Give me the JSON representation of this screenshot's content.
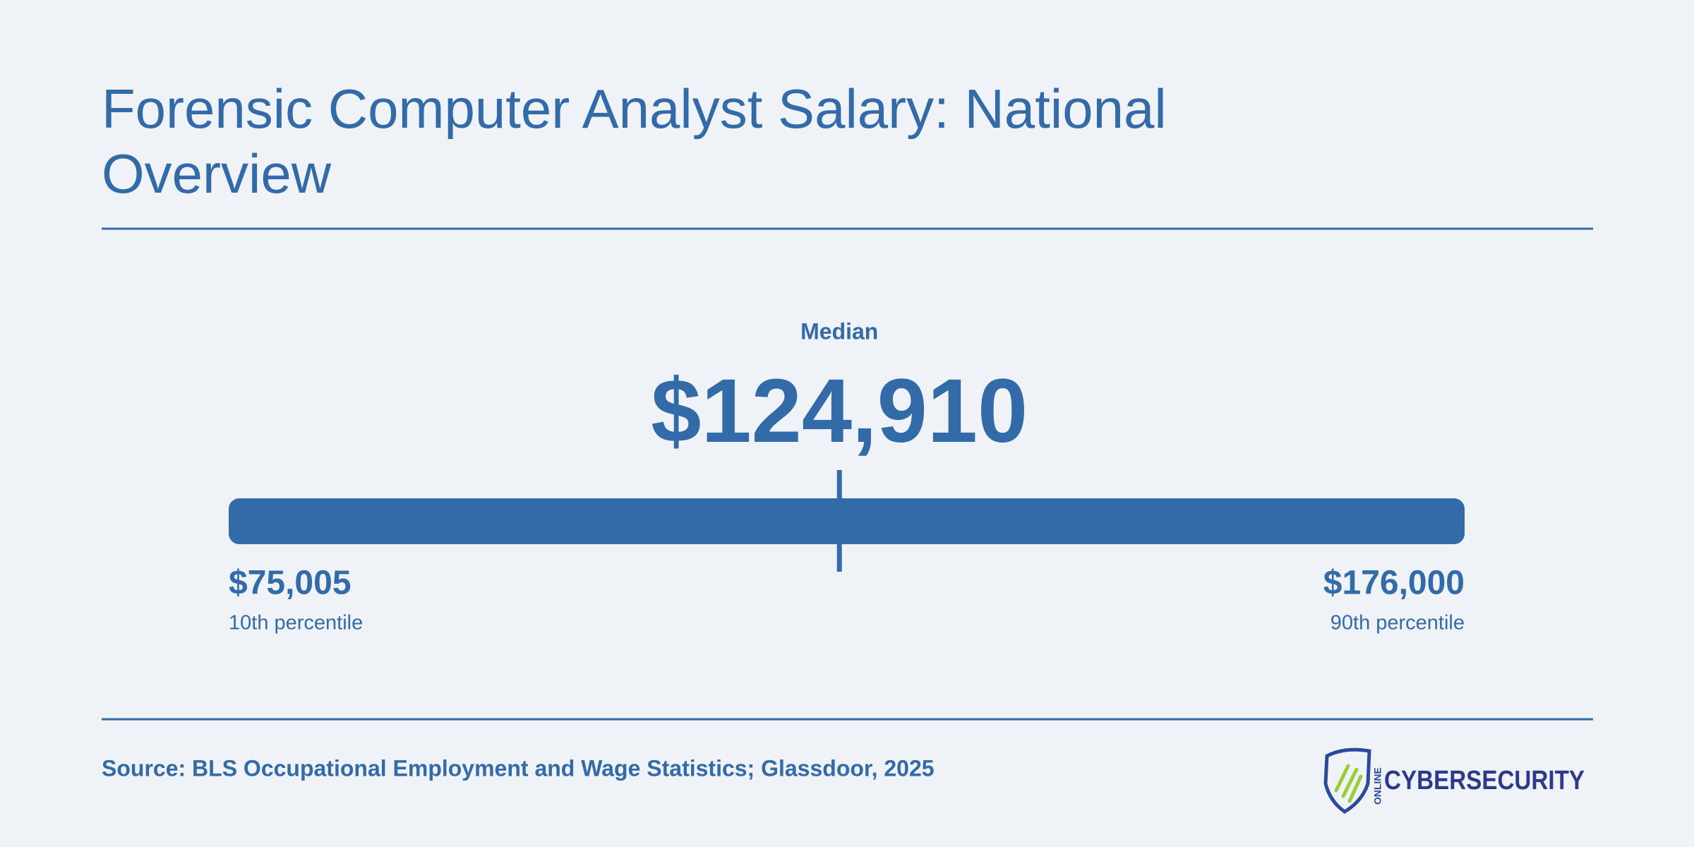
{
  "chart_data": {
    "type": "range",
    "title": "Forensic Computer Analyst Salary: National Overview",
    "categories": [
      "10th percentile",
      "Median",
      "90th percentile"
    ],
    "values": [
      75005,
      124910,
      176000
    ],
    "value_labels": [
      "$75,005",
      "$124,910",
      "$176,000"
    ],
    "color": "#336aa8",
    "source": "Source: BLS Occupational Employment and Wage Statistics; Glassdoor, 2025"
  },
  "logo": {
    "small": "ONLINE",
    "text": "CYBERSECURITY"
  }
}
